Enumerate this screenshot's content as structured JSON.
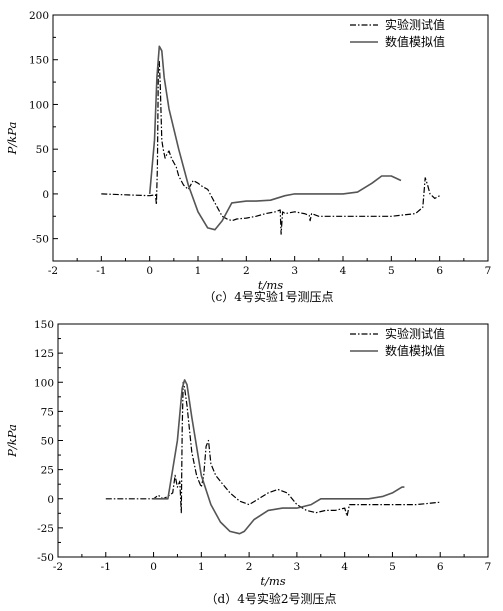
{
  "chart_data": [
    {
      "type": "line",
      "caption": "（c）4号实验1号测压点",
      "xlabel": "t/ms",
      "ylabel": "P/kPa",
      "xlim": [
        -2,
        7
      ],
      "ylim": [
        -75,
        200
      ],
      "xticks": [
        -2,
        -1,
        0,
        1,
        2,
        3,
        4,
        5,
        6,
        7
      ],
      "yticks": [
        -50,
        0,
        50,
        100,
        150,
        200
      ],
      "legend_position": "top-right",
      "series": [
        {
          "name": "实验测试值",
          "style": "dash-dot",
          "x": [
            -1.0,
            -0.5,
            0.0,
            0.12,
            0.14,
            0.16,
            0.18,
            0.2,
            0.22,
            0.25,
            0.28,
            0.32,
            0.36,
            0.4,
            0.45,
            0.5,
            0.55,
            0.6,
            0.7,
            0.8,
            0.9,
            1.0,
            1.1,
            1.2,
            1.3,
            1.4,
            1.5,
            1.6,
            1.7,
            1.8,
            2.0,
            2.2,
            2.4,
            2.6,
            2.7,
            2.72,
            2.75,
            2.8,
            3.0,
            3.2,
            3.3,
            3.32,
            3.35,
            3.5,
            4.0,
            4.5,
            5.0,
            5.5,
            5.65,
            5.7,
            5.75,
            5.8,
            5.9,
            6.0
          ],
          "y": [
            0,
            -1,
            -2,
            -1,
            -12,
            30,
            145,
            148,
            120,
            60,
            50,
            40,
            45,
            48,
            40,
            35,
            30,
            20,
            10,
            5,
            15,
            12,
            8,
            5,
            -5,
            -15,
            -25,
            -28,
            -30,
            -28,
            -27,
            -25,
            -22,
            -20,
            -18,
            -45,
            -20,
            -22,
            -20,
            -22,
            -24,
            -30,
            -22,
            -25,
            -25,
            -25,
            -25,
            -22,
            -15,
            18,
            10,
            0,
            -5,
            -2
          ],
          "color": "#000000"
        },
        {
          "name": "数值模拟值",
          "style": "solid",
          "x": [
            0.0,
            0.1,
            0.15,
            0.2,
            0.25,
            0.3,
            0.4,
            0.6,
            0.8,
            1.0,
            1.2,
            1.35,
            1.5,
            1.7,
            2.0,
            2.2,
            2.5,
            2.8,
            3.0,
            3.5,
            4.0,
            4.3,
            4.6,
            4.8,
            5.0,
            5.2
          ],
          "y": [
            0,
            60,
            130,
            165,
            160,
            130,
            95,
            50,
            10,
            -20,
            -38,
            -40,
            -30,
            -10,
            -8,
            -8,
            -7,
            -2,
            0,
            0,
            0,
            2,
            12,
            20,
            20,
            15
          ],
          "color": "#555555"
        }
      ]
    },
    {
      "type": "line",
      "caption": "（d）4号实验2号测压点",
      "xlabel": "t/ms",
      "ylabel": "P/kPa",
      "xlim": [
        -2,
        7
      ],
      "ylim": [
        -50,
        150
      ],
      "xticks": [
        -2,
        -1,
        0,
        1,
        2,
        3,
        4,
        5,
        6,
        7
      ],
      "yticks": [
        -50,
        -25,
        0,
        25,
        50,
        75,
        100,
        125,
        150
      ],
      "legend_position": "top-right",
      "series": [
        {
          "name": "实验测试值",
          "style": "dash-dot",
          "x": [
            -1.0,
            0.0,
            0.1,
            0.2,
            0.3,
            0.4,
            0.45,
            0.5,
            0.55,
            0.58,
            0.6,
            0.62,
            0.65,
            0.7,
            0.75,
            0.8,
            0.85,
            0.9,
            0.95,
            1.0,
            1.05,
            1.1,
            1.15,
            1.2,
            1.25,
            1.3,
            1.4,
            1.5,
            1.6,
            1.8,
            2.0,
            2.2,
            2.4,
            2.6,
            2.8,
            3.0,
            3.2,
            3.4,
            3.6,
            3.8,
            4.0,
            4.05,
            4.1,
            4.5,
            5.0,
            5.5,
            6.0
          ],
          "y": [
            0,
            0,
            3,
            0,
            2,
            5,
            20,
            10,
            15,
            -12,
            60,
            100,
            95,
            80,
            60,
            40,
            30,
            20,
            15,
            10,
            20,
            45,
            50,
            30,
            25,
            20,
            15,
            10,
            5,
            -2,
            -5,
            0,
            5,
            8,
            5,
            -5,
            -10,
            -12,
            -10,
            -10,
            -8,
            -15,
            -5,
            -5,
            -5,
            -5,
            -3
          ],
          "color": "#000000"
        },
        {
          "name": "数值模拟值",
          "style": "solid",
          "x": [
            0.0,
            0.3,
            0.5,
            0.6,
            0.65,
            0.7,
            0.8,
            1.0,
            1.2,
            1.4,
            1.6,
            1.8,
            1.9,
            2.1,
            2.4,
            2.7,
            3.0,
            3.3,
            3.5,
            4.0,
            4.5,
            4.8,
            5.0,
            5.2,
            5.25
          ],
          "y": [
            0,
            0,
            50,
            95,
            102,
            98,
            70,
            20,
            -5,
            -20,
            -28,
            -30,
            -28,
            -18,
            -10,
            -8,
            -8,
            -5,
            0,
            0,
            0,
            2,
            5,
            10,
            10
          ],
          "color": "#555555"
        }
      ]
    }
  ]
}
